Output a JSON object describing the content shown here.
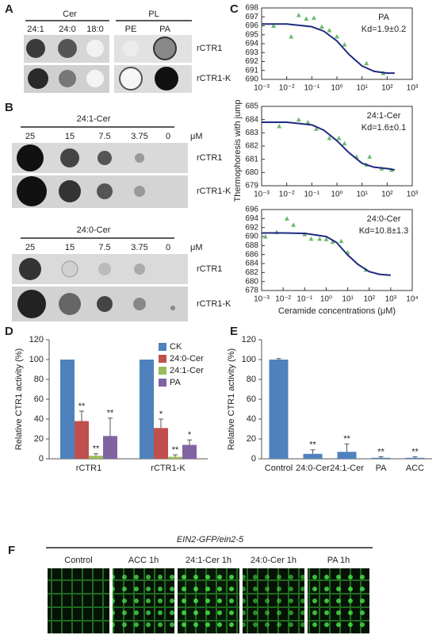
{
  "panel_labels": [
    "A",
    "B",
    "C",
    "D",
    "E",
    "F"
  ],
  "panel_a": {
    "group_labels": [
      "Cer",
      "PL"
    ],
    "lipids": [
      "24:1",
      "24:0",
      "18:0",
      "PE",
      "PA"
    ],
    "rows": [
      "rCTR1",
      "rCTR1-K"
    ]
  },
  "panel_b": [
    {
      "title": "24:1-Cer",
      "concentrations": [
        "25",
        "15",
        "7.5",
        "3.75",
        "0"
      ],
      "unit": "μM",
      "rows": [
        "rCTR1",
        "rCTR1-K"
      ]
    },
    {
      "title": "24:0-Cer",
      "concentrations": [
        "25",
        "15",
        "7.5",
        "3.75",
        "0"
      ],
      "unit": "μM",
      "rows": [
        "rCTR1",
        "rCTR1-K"
      ]
    }
  ],
  "panel_c": {
    "ylabel": "Thermophoresis with jump",
    "xlabel": "Ceramide concentrations (μM)"
  },
  "panel_f": {
    "title": "EIN2-GFP/ein2-5",
    "treatments": [
      "Control",
      "ACC 1h",
      "24:1-Cer 1h",
      "24:0-Cer 1h",
      "PA 1h"
    ]
  },
  "chart_data": [
    {
      "type": "scatter",
      "xscale": "log",
      "annotation": "PA",
      "kd_label": "Kd=1.9±0.2",
      "xlim": [
        0.001,
        1000
      ],
      "xticks": [
        {
          "value": 0.001,
          "label": "10⁻³"
        },
        {
          "value": 0.01,
          "label": "10⁻²"
        },
        {
          "value": 0.1,
          "label": "10⁻¹"
        },
        {
          "value": 1,
          "label": "10⁰"
        },
        {
          "value": 10,
          "label": "10¹"
        },
        {
          "value": 100,
          "label": "10²"
        },
        {
          "value": 1000,
          "label": "10³"
        }
      ],
      "ylim": [
        690,
        698
      ],
      "yticks": [
        690,
        691,
        692,
        693,
        694,
        695,
        696,
        697,
        698
      ],
      "series": [
        {
          "style": "markers",
          "color": "#6dbb6d",
          "x": [
            0.003,
            0.015,
            0.03,
            0.06,
            0.12,
            0.25,
            0.5,
            1,
            2,
            15,
            70
          ],
          "values": [
            696.0,
            694.8,
            697.2,
            696.8,
            696.9,
            695.9,
            695.5,
            694.8,
            693.9,
            691.8,
            690.7
          ]
        },
        {
          "style": "line",
          "color": "#1f2a80",
          "x": [
            0.001,
            0.01,
            0.1,
            0.3,
            1,
            3,
            10,
            30,
            100,
            200
          ],
          "values": [
            696.2,
            696.2,
            695.9,
            695.4,
            694.3,
            692.8,
            691.5,
            690.9,
            690.7,
            690.7
          ]
        }
      ]
    },
    {
      "type": "scatter",
      "xscale": "log",
      "annotation": "24:1-Cer",
      "kd_label": "Kd=1.6±0.1",
      "xlim": [
        0.001,
        1000
      ],
      "xticks": [
        {
          "value": 0.001,
          "label": "10⁻³"
        },
        {
          "value": 0.01,
          "label": "10⁻²"
        },
        {
          "value": 0.1,
          "label": "10⁻¹"
        },
        {
          "value": 1,
          "label": "10⁰"
        },
        {
          "value": 10,
          "label": "10¹"
        },
        {
          "value": 100,
          "label": "10²"
        },
        {
          "value": 1000,
          "label": "10³"
        }
      ],
      "ylim": [
        679,
        685
      ],
      "yticks": [
        679,
        680,
        681,
        682,
        683,
        684,
        685
      ],
      "series": [
        {
          "style": "markers",
          "color": "#6dbb6d",
          "x": [
            0.005,
            0.03,
            0.07,
            0.15,
            0.5,
            1.2,
            2,
            6,
            15,
            20,
            60,
            150
          ],
          "values": [
            683.5,
            684.0,
            683.8,
            683.3,
            682.6,
            682.6,
            682.2,
            681.2,
            680.6,
            681.2,
            680.3,
            680.2
          ]
        },
        {
          "style": "line",
          "color": "#1f2a80",
          "x": [
            0.001,
            0.01,
            0.1,
            0.3,
            1,
            3,
            10,
            30,
            100,
            200
          ],
          "values": [
            683.8,
            683.8,
            683.6,
            683.2,
            682.4,
            681.5,
            680.7,
            680.4,
            680.3,
            680.2
          ]
        }
      ]
    },
    {
      "type": "scatter",
      "xscale": "log",
      "annotation": "24:0-Cer",
      "kd_label": "Kd=10.8±1.3",
      "xlim": [
        0.001,
        10000
      ],
      "xticks": [
        {
          "value": 0.001,
          "label": "10⁻³"
        },
        {
          "value": 0.01,
          "label": "10⁻²"
        },
        {
          "value": 0.1,
          "label": "10⁻¹"
        },
        {
          "value": 1,
          "label": "10⁰"
        },
        {
          "value": 10,
          "label": "10¹"
        },
        {
          "value": 100,
          "label": "10²"
        },
        {
          "value": 1000,
          "label": "10³"
        },
        {
          "value": 10000,
          "label": "10⁴"
        }
      ],
      "ylim": [
        678,
        696
      ],
      "yticks": [
        678,
        680,
        682,
        684,
        686,
        688,
        690,
        692,
        694,
        696
      ],
      "series": [
        {
          "style": "markers",
          "color": "#6dbb6d",
          "x": [
            0.0015,
            0.005,
            0.015,
            0.03,
            0.1,
            0.2,
            0.5,
            1,
            2,
            5,
            10,
            70
          ],
          "values": [
            690.0,
            691.0,
            694.0,
            692.6,
            690.5,
            689.5,
            689.5,
            689.4,
            688.8,
            689.0,
            686.5,
            682.6
          ]
        },
        {
          "style": "line",
          "color": "#1f2a80",
          "x": [
            0.001,
            0.01,
            0.1,
            1,
            3,
            10,
            30,
            100,
            300,
            1000
          ],
          "values": [
            690.8,
            690.8,
            690.7,
            690.0,
            688.7,
            685.9,
            683.8,
            682.2,
            681.6,
            681.4
          ]
        }
      ]
    },
    {
      "type": "bar",
      "ylabel": "Relative CTR1 activity (%)",
      "categories": [
        "rCTR1",
        "rCTR1-K"
      ],
      "ylim": [
        0,
        120
      ],
      "yticks": [
        0,
        20,
        40,
        60,
        80,
        100,
        120
      ],
      "legend": "upper right",
      "series": [
        {
          "name": "CK",
          "color": "#4f81bd",
          "values": [
            100,
            100
          ]
        },
        {
          "name": "24:0-Cer",
          "color": "#c0504d",
          "values": [
            38,
            31
          ],
          "errors": [
            10,
            9
          ],
          "annotations": [
            "**",
            "*"
          ]
        },
        {
          "name": "24:1-Cer",
          "color": "#9bbb59",
          "values": [
            3,
            2
          ],
          "errors": [
            2,
            2
          ],
          "annotations": [
            "**",
            "**"
          ]
        },
        {
          "name": "PA",
          "color": "#8064a2",
          "values": [
            23,
            14
          ],
          "errors": [
            18,
            5
          ],
          "annotations": [
            "**",
            "*"
          ]
        }
      ]
    },
    {
      "type": "bar",
      "ylabel": "Relative CTR1 activity (%)",
      "categories": [
        "Control",
        "24:0-Cer",
        "24:1-Cer",
        "PA",
        "ACC"
      ],
      "ylim": [
        0,
        120
      ],
      "yticks": [
        0,
        20,
        40,
        60,
        80,
        100,
        120
      ],
      "color": "#4f81bd",
      "values": [
        100,
        5,
        7,
        1,
        1
      ],
      "errors": [
        1,
        4,
        8,
        1,
        1
      ],
      "annotations": [
        null,
        "**",
        "**",
        "**",
        "**"
      ]
    }
  ]
}
